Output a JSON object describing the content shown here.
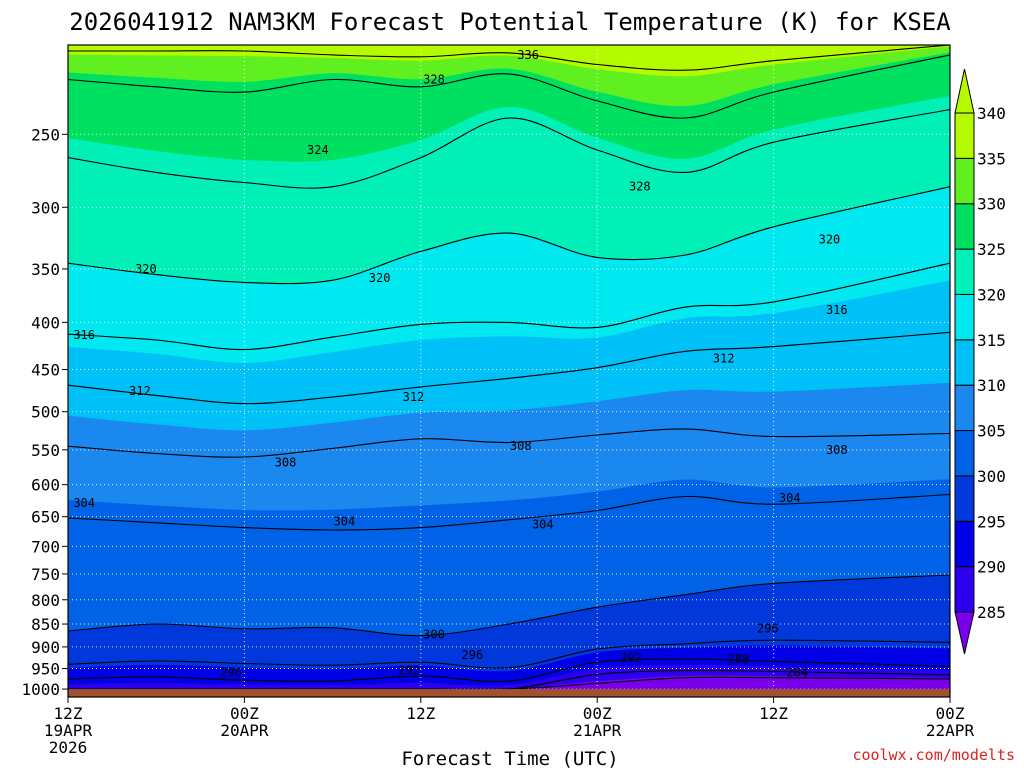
{
  "chart_data": {
    "type": "heatmap",
    "title": "2026041912 NAM3KM Forecast Potential Temperature (K) for KSEA",
    "xlabel": "Forecast Time (UTC)",
    "ylabel": "",
    "credit": "coolwx.com/modelts",
    "x_axis": {
      "unit": "forecast hour",
      "range": [
        0,
        60
      ],
      "ticks": [
        {
          "hour": 0,
          "lines": [
            "12Z",
            "19APR",
            "2026"
          ]
        },
        {
          "hour": 12,
          "lines": [
            "00Z",
            "20APR"
          ]
        },
        {
          "hour": 24,
          "lines": [
            "12Z"
          ]
        },
        {
          "hour": 36,
          "lines": [
            "00Z",
            "21APR"
          ]
        },
        {
          "hour": 48,
          "lines": [
            "12Z"
          ]
        },
        {
          "hour": 60,
          "lines": [
            "00Z",
            "22APR"
          ]
        }
      ]
    },
    "y_axis": {
      "unit": "hPa",
      "range": [
        1020,
        200
      ],
      "scale": "log",
      "inverted": true,
      "ticks": [
        250,
        300,
        350,
        400,
        450,
        500,
        550,
        600,
        650,
        700,
        750,
        800,
        850,
        900,
        950,
        1000
      ]
    },
    "colorbar": {
      "levels": [
        285,
        290,
        295,
        300,
        305,
        310,
        315,
        320,
        325,
        330,
        335,
        340
      ],
      "colors": [
        "#7a00ec",
        "#2c00ef",
        "#0000e6",
        "#0038dc",
        "#0062e6",
        "#1a88ee",
        "#00c0f8",
        "#00e8f0",
        "#00f0b8",
        "#00e060",
        "#60f020",
        "#b4fa00"
      ]
    },
    "ground_color": "#a0522d",
    "isentropes": [
      {
        "theta": 284,
        "p": [
          1000,
          1000,
          1000,
          1000,
          1000,
          1000,
          986,
          972,
          972,
          975
        ]
      },
      {
        "theta": 288,
        "p": [
          1000,
          1000,
          1000,
          1000,
          1000,
          1000,
          964,
          955,
          957,
          965
        ]
      },
      {
        "theta": 292,
        "p": [
          975,
          970,
          978,
          980,
          968,
          980,
          935,
          928,
          933,
          945
        ]
      },
      {
        "theta": 296,
        "p": [
          940,
          932,
          938,
          942,
          935,
          948,
          905,
          893,
          885,
          890
        ]
      },
      {
        "theta": 300,
        "p": [
          865,
          850,
          860,
          858,
          875,
          850,
          815,
          790,
          768,
          752
        ]
      },
      {
        "theta": 304,
        "p": [
          652,
          660,
          668,
          672,
          668,
          655,
          640,
          618,
          630,
          615
        ]
      },
      {
        "theta": 308,
        "p": [
          545,
          555,
          560,
          548,
          535,
          540,
          530,
          522,
          532,
          528
        ]
      },
      {
        "theta": 312,
        "p": [
          468,
          480,
          490,
          482,
          470,
          460,
          448,
          430,
          425,
          410
        ]
      },
      {
        "theta": 316,
        "p": [
          412,
          418,
          428,
          415,
          402,
          400,
          405,
          385,
          380,
          345
        ]
      },
      {
        "theta": 320,
        "p": [
          345,
          355,
          362,
          360,
          335,
          320,
          340,
          338,
          315,
          285
        ]
      },
      {
        "theta": 324,
        "p": [
          265,
          275,
          282,
          285,
          265,
          240,
          260,
          275,
          255,
          235
        ]
      },
      {
        "theta": 328,
        "p": [
          218,
          222,
          225,
          218,
          222,
          215,
          230,
          240,
          225,
          205
        ]
      },
      {
        "theta": 336,
        "p": [
          203,
          203,
          203,
          205,
          206,
          204,
          210,
          213,
          208,
          200
        ]
      }
    ],
    "isentrope_hours": [
      0,
      6,
      12,
      18,
      24,
      30,
      36,
      42,
      48,
      60
    ],
    "contour_labels": [
      {
        "text": "336",
        "hour": 31.3,
        "p": 205
      },
      {
        "text": "328",
        "hour": 24.9,
        "p": 218
      },
      {
        "text": "324",
        "hour": 17.0,
        "p": 260
      },
      {
        "text": "328",
        "hour": 38.9,
        "p": 285
      },
      {
        "text": "320",
        "hour": 51.8,
        "p": 325
      },
      {
        "text": "320",
        "hour": 5.3,
        "p": 350
      },
      {
        "text": "320",
        "hour": 21.2,
        "p": 358
      },
      {
        "text": "316",
        "hour": 52.3,
        "p": 388
      },
      {
        "text": "316",
        "hour": 1.1,
        "p": 413
      },
      {
        "text": "312",
        "hour": 44.6,
        "p": 438
      },
      {
        "text": "312",
        "hour": 4.9,
        "p": 475
      },
      {
        "text": "312",
        "hour": 23.5,
        "p": 482
      },
      {
        "text": "308",
        "hour": 30.8,
        "p": 545
      },
      {
        "text": "308",
        "hour": 52.3,
        "p": 550
      },
      {
        "text": "308",
        "hour": 14.8,
        "p": 568
      },
      {
        "text": "304",
        "hour": 49.1,
        "p": 620
      },
      {
        "text": "304",
        "hour": 1.1,
        "p": 628
      },
      {
        "text": "304",
        "hour": 18.8,
        "p": 658
      },
      {
        "text": "304",
        "hour": 32.3,
        "p": 663
      },
      {
        "text": "296",
        "hour": 47.6,
        "p": 860
      },
      {
        "text": "300",
        "hour": 24.9,
        "p": 873
      },
      {
        "text": "296",
        "hour": 27.5,
        "p": 918
      },
      {
        "text": "292",
        "hour": 38.3,
        "p": 925
      },
      {
        "text": "288",
        "hour": 45.6,
        "p": 928
      },
      {
        "text": "296",
        "hour": 11.1,
        "p": 960
      },
      {
        "text": "292",
        "hour": 23.2,
        "p": 955
      },
      {
        "text": "284",
        "hour": 49.6,
        "p": 960
      }
    ]
  }
}
